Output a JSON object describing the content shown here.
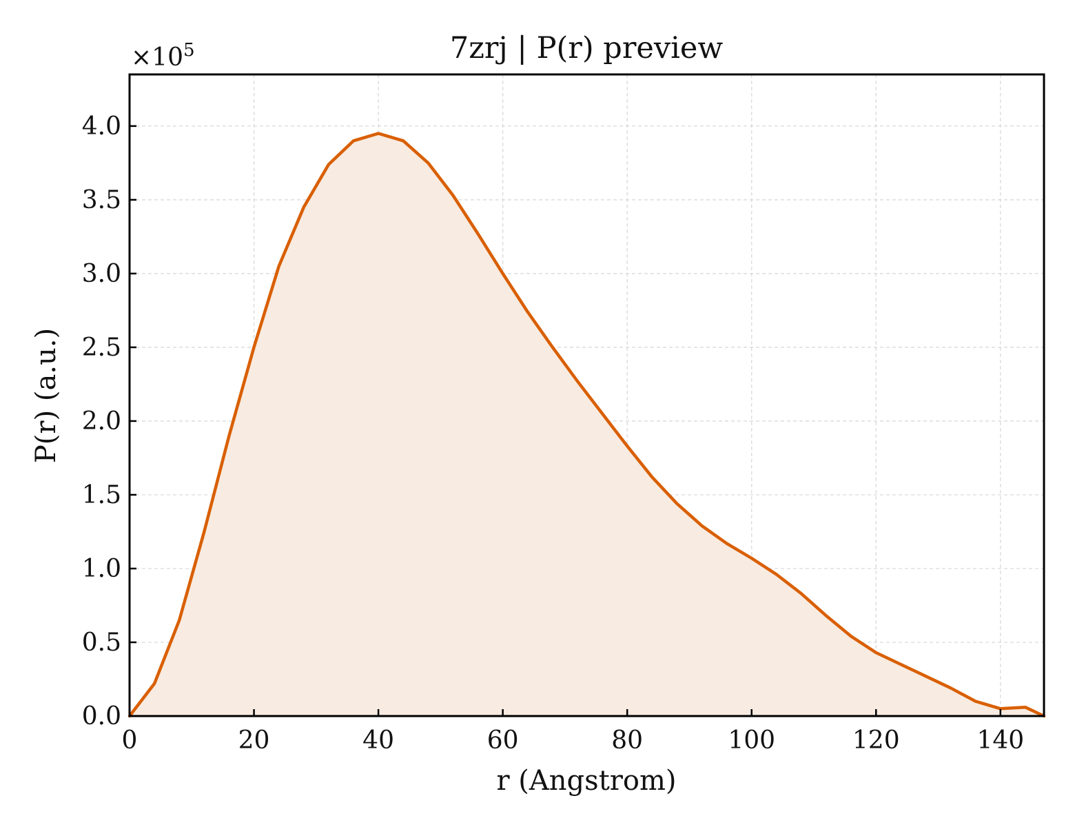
{
  "chart_data": {
    "type": "area",
    "title": "7zrj | P(r) preview",
    "xlabel": "r (Angstrom)",
    "ylabel": "P(r) (a.u.)",
    "y_multiplier": "×10",
    "y_multiplier_exp": "5",
    "xlim": [
      0,
      147
    ],
    "ylim": [
      0,
      4.35
    ],
    "y_scale": 100000,
    "grid": true,
    "line_color": "#D95F02",
    "fill_color": "#F8EBE1",
    "x_ticks": [
      0,
      20,
      40,
      60,
      80,
      100,
      120,
      140
    ],
    "x_tick_labels": [
      "0",
      "20",
      "40",
      "60",
      "80",
      "100",
      "120",
      "140"
    ],
    "y_ticks": [
      0,
      0.5,
      1.0,
      1.5,
      2.0,
      2.5,
      3.0,
      3.5,
      4.0
    ],
    "y_tick_labels": [
      "0.0",
      "0.5",
      "1.0",
      "1.5",
      "2.0",
      "2.5",
      "3.0",
      "3.5",
      "4.0"
    ],
    "series": [
      {
        "x": [
          0,
          4,
          8,
          12,
          16,
          20,
          24,
          28,
          32,
          36,
          40,
          44,
          48,
          52,
          56,
          60,
          64,
          68,
          72,
          76,
          80,
          84,
          88,
          92,
          96,
          100,
          104,
          108,
          112,
          116,
          120,
          124,
          128,
          132,
          136,
          140,
          144,
          147
        ],
        "values": [
          0.0,
          0.22,
          0.65,
          1.25,
          1.9,
          2.5,
          3.05,
          3.45,
          3.74,
          3.9,
          3.95,
          3.9,
          3.75,
          3.53,
          3.27,
          3.0,
          2.74,
          2.5,
          2.27,
          2.05,
          1.83,
          1.62,
          1.44,
          1.29,
          1.17,
          1.07,
          0.96,
          0.83,
          0.68,
          0.54,
          0.43,
          0.35,
          0.27,
          0.19,
          0.1,
          0.05,
          0.06,
          0.0
        ]
      }
    ]
  }
}
